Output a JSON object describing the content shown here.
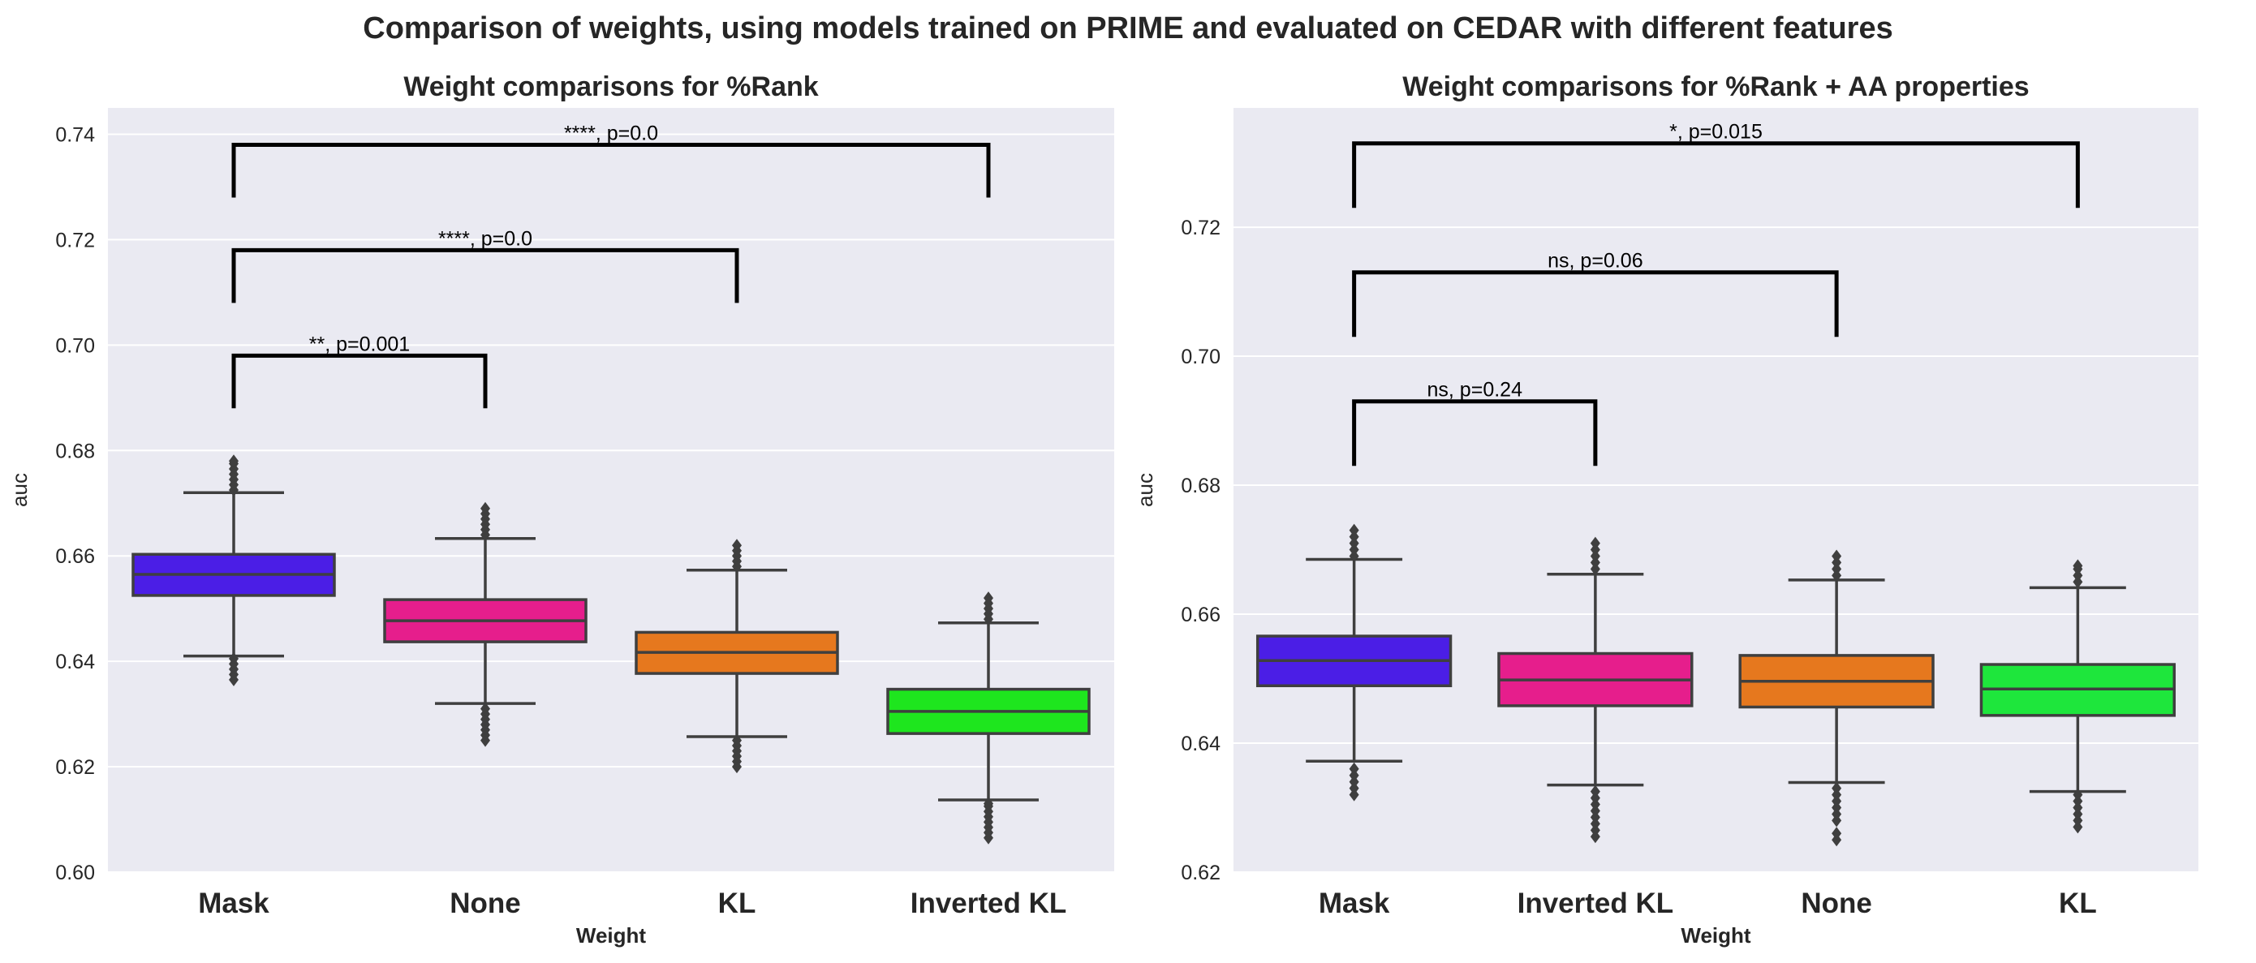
{
  "figure_title": "Comparison of weights, using models trained on PRIME and evaluated on CEDAR with different features",
  "chart_data": [
    {
      "type": "box",
      "title": "Weight comparisons for %Rank",
      "xlabel": "Weight",
      "ylabel": "auc",
      "ylim": [
        0.6,
        0.745
      ],
      "yticks": [
        "0.60",
        "0.62",
        "0.64",
        "0.66",
        "0.68",
        "0.70",
        "0.72",
        "0.74"
      ],
      "grid": true,
      "categories": [
        "Mask",
        "None",
        "KL",
        "Inverted KL"
      ],
      "boxes": [
        {
          "category": "Mask",
          "color": "#4b1ee6",
          "whislo": 0.641,
          "q1": 0.6525,
          "median": 0.6565,
          "q3": 0.6603,
          "whishi": 0.672,
          "fliers_low": [
            0.6365,
            0.6375,
            0.6385,
            0.6395,
            0.6405
          ],
          "fliers_high": [
            0.6725,
            0.6735,
            0.6745,
            0.6755,
            0.6765,
            0.6775,
            0.678
          ]
        },
        {
          "category": "None",
          "color": "#e61e8c",
          "whislo": 0.632,
          "q1": 0.6437,
          "median": 0.6477,
          "q3": 0.6517,
          "whishi": 0.6633,
          "fliers_low": [
            0.625,
            0.626,
            0.627,
            0.628,
            0.629,
            0.63,
            0.631
          ],
          "fliers_high": [
            0.664,
            0.665,
            0.666,
            0.667,
            0.668,
            0.669
          ]
        },
        {
          "category": "KL",
          "color": "#e6781e",
          "whislo": 0.6257,
          "q1": 0.6377,
          "median": 0.6417,
          "q3": 0.6455,
          "whishi": 0.6573,
          "fliers_low": [
            0.62,
            0.621,
            0.622,
            0.623,
            0.624,
            0.625
          ],
          "fliers_high": [
            0.658,
            0.659,
            0.66,
            0.661,
            0.662
          ]
        },
        {
          "category": "Inverted KL",
          "color": "#1ee61e",
          "whislo": 0.6137,
          "q1": 0.6263,
          "median": 0.6305,
          "q3": 0.6347,
          "whishi": 0.6473,
          "fliers_low": [
            0.6065,
            0.6075,
            0.6085,
            0.6095,
            0.6105,
            0.6115,
            0.6125,
            0.613
          ],
          "fliers_high": [
            0.648,
            0.649,
            0.65,
            0.651,
            0.652
          ]
        }
      ],
      "annotations": [
        {
          "from": "Mask",
          "to": "None",
          "text": "**, p=0.001",
          "y": 0.698,
          "drop_from": 0.688,
          "drop_to": 0.688
        },
        {
          "from": "Mask",
          "to": "KL",
          "text": "****, p=0.0",
          "y": 0.718,
          "drop_from": 0.708,
          "drop_to": 0.708
        },
        {
          "from": "Mask",
          "to": "Inverted KL",
          "text": "****, p=0.0",
          "y": 0.738,
          "drop_from": 0.728,
          "drop_to": 0.728
        }
      ]
    },
    {
      "type": "box",
      "title": "Weight comparisons for %Rank + AA properties",
      "xlabel": "Weight",
      "ylabel": "auc",
      "ylim": [
        0.62,
        0.7385
      ],
      "yticks": [
        "0.62",
        "0.64",
        "0.66",
        "0.68",
        "0.70",
        "0.72"
      ],
      "grid": true,
      "categories": [
        "Mask",
        "Inverted KL",
        "None",
        "KL"
      ],
      "boxes": [
        {
          "category": "Mask",
          "color": "#4b1ee6",
          "whislo": 0.6372,
          "q1": 0.6489,
          "median": 0.6528,
          "q3": 0.6566,
          "whishi": 0.6685,
          "fliers_low": [
            0.632,
            0.633,
            0.634,
            0.635,
            0.636
          ],
          "fliers_high": [
            0.669,
            0.67,
            0.671,
            0.672,
            0.673
          ]
        },
        {
          "category": "Inverted KL",
          "color": "#e61e8c",
          "whislo": 0.6335,
          "q1": 0.6458,
          "median": 0.6498,
          "q3": 0.6539,
          "whishi": 0.6662,
          "fliers_low": [
            0.6255,
            0.6265,
            0.6275,
            0.6285,
            0.6295,
            0.6305,
            0.6315,
            0.6325
          ],
          "fliers_high": [
            0.667,
            0.668,
            0.669,
            0.67,
            0.671
          ]
        },
        {
          "category": "None",
          "color": "#e6781e",
          "whislo": 0.6339,
          "q1": 0.6456,
          "median": 0.6496,
          "q3": 0.6536,
          "whishi": 0.6653,
          "fliers_low": [
            0.625,
            0.626,
            0.628,
            0.629,
            0.63,
            0.631,
            0.632,
            0.633
          ],
          "fliers_high": [
            0.666,
            0.667,
            0.668,
            0.669
          ]
        },
        {
          "category": "KL",
          "color": "#1ee63c",
          "whislo": 0.6325,
          "q1": 0.6443,
          "median": 0.6484,
          "q3": 0.6522,
          "whishi": 0.6641,
          "fliers_low": [
            0.627,
            0.628,
            0.629,
            0.63,
            0.631,
            0.632
          ],
          "fliers_high": [
            0.665,
            0.666,
            0.667,
            0.6675
          ]
        }
      ],
      "annotations": [
        {
          "from": "Mask",
          "to": "Inverted KL",
          "text": "ns, p=0.24",
          "y": 0.693,
          "drop_from": 0.683,
          "drop_to": 0.683
        },
        {
          "from": "Mask",
          "to": "None",
          "text": "ns, p=0.06",
          "y": 0.713,
          "drop_from": 0.703,
          "drop_to": 0.703
        },
        {
          "from": "Mask",
          "to": "KL",
          "text": "*, p=0.015",
          "y": 0.733,
          "drop_from": 0.723,
          "drop_to": 0.723
        }
      ]
    }
  ]
}
